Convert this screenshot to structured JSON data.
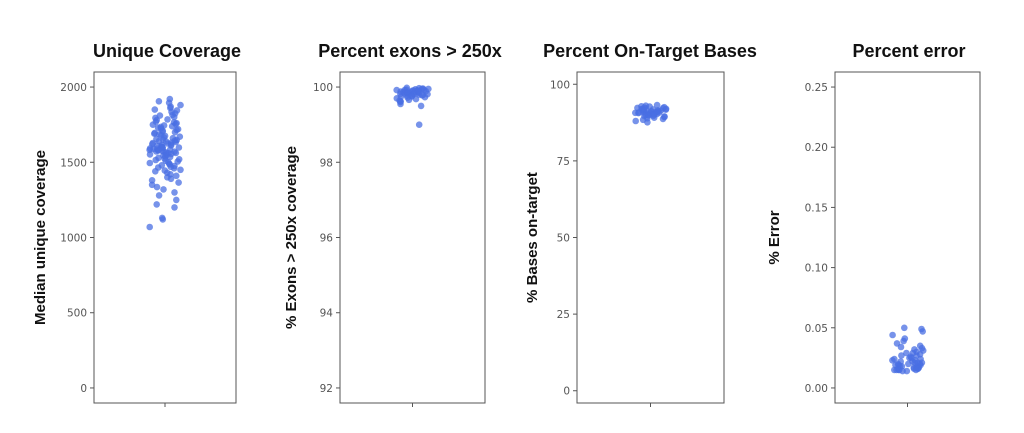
{
  "chart_data": [
    {
      "type": "scatter",
      "subtype": "jitter-strip",
      "title": "Unique Coverage",
      "ylabel": "Median unique coverage",
      "xlabel": "",
      "ylim": [
        -100,
        2100
      ],
      "yticks": [
        0,
        500,
        1000,
        1500,
        2000
      ],
      "ytick_labels": [
        "0",
        "500",
        "1000",
        "1500",
        "2000"
      ],
      "point_color": "#4A6FE3",
      "values": [
        1920,
        1905,
        1895,
        1880,
        1870,
        1860,
        1850,
        1845,
        1835,
        1825,
        1815,
        1810,
        1800,
        1795,
        1785,
        1780,
        1770,
        1765,
        1760,
        1755,
        1750,
        1745,
        1740,
        1735,
        1730,
        1725,
        1720,
        1715,
        1710,
        1705,
        1700,
        1695,
        1690,
        1685,
        1680,
        1675,
        1670,
        1665,
        1660,
        1655,
        1650,
        1648,
        1645,
        1640,
        1638,
        1635,
        1630,
        1628,
        1625,
        1620,
        1618,
        1615,
        1612,
        1610,
        1605,
        1602,
        1600,
        1598,
        1595,
        1592,
        1590,
        1588,
        1585,
        1582,
        1580,
        1578,
        1575,
        1572,
        1570,
        1568,
        1565,
        1562,
        1560,
        1555,
        1552,
        1550,
        1545,
        1540,
        1535,
        1530,
        1525,
        1520,
        1515,
        1510,
        1505,
        1500,
        1495,
        1490,
        1485,
        1480,
        1475,
        1470,
        1465,
        1460,
        1450,
        1445,
        1440,
        1430,
        1420,
        1410,
        1400,
        1390,
        1380,
        1365,
        1350,
        1335,
        1320,
        1300,
        1280,
        1250,
        1220,
        1200,
        1130,
        1120,
        1070
      ]
    },
    {
      "type": "scatter",
      "subtype": "jitter-strip",
      "title": "Percent exons > 250x",
      "ylabel": "% Exons > 250x coverage",
      "xlabel": "",
      "ylim": [
        91.6,
        100.4
      ],
      "yticks": [
        92,
        94,
        96,
        98,
        100
      ],
      "ytick_labels": [
        "92",
        "94",
        "96",
        "98",
        "100"
      ],
      "point_color": "#4A6FE3",
      "values": [
        99.98,
        99.97,
        99.96,
        99.95,
        99.95,
        99.94,
        99.93,
        99.93,
        99.92,
        99.92,
        99.91,
        99.91,
        99.9,
        99.9,
        99.9,
        99.89,
        99.89,
        99.88,
        99.88,
        99.87,
        99.87,
        99.86,
        99.86,
        99.85,
        99.85,
        99.84,
        99.84,
        99.83,
        99.83,
        99.82,
        99.82,
        99.81,
        99.8,
        99.8,
        99.79,
        99.78,
        99.77,
        99.76,
        99.75,
        99.74,
        99.73,
        99.72,
        99.7,
        99.68,
        99.66,
        99.64,
        99.62,
        99.6,
        99.55,
        99.5,
        99.0
      ]
    },
    {
      "type": "scatter",
      "subtype": "jitter-strip",
      "title": "Percent On-Target Bases",
      "ylabel": "% Bases on-target",
      "xlabel": "",
      "ylim": [
        -4,
        104
      ],
      "yticks": [
        0,
        25,
        50,
        75,
        100
      ],
      "ytick_labels": [
        "0",
        "25",
        "50",
        "75",
        "100"
      ],
      "point_color": "#4A6FE3",
      "values": [
        93.2,
        93.0,
        92.8,
        92.7,
        92.5,
        92.4,
        92.3,
        92.2,
        92.1,
        92.0,
        91.9,
        91.8,
        91.8,
        91.7,
        91.6,
        91.5,
        91.5,
        91.4,
        91.3,
        91.2,
        91.2,
        91.1,
        91.0,
        91.0,
        90.9,
        90.8,
        90.8,
        90.7,
        90.6,
        90.5,
        90.5,
        90.4,
        90.3,
        90.2,
        90.1,
        90.0,
        89.9,
        89.8,
        89.7,
        89.6,
        89.5,
        89.3,
        89.1,
        88.9,
        88.7,
        88.4,
        88.0,
        87.6
      ]
    },
    {
      "type": "scatter",
      "subtype": "jitter-strip",
      "title": "Percent error",
      "ylabel": "% Error",
      "xlabel": "",
      "ylim": [
        -0.0125,
        0.2625
      ],
      "yticks": [
        0.0,
        0.05,
        0.1,
        0.15,
        0.2,
        0.25
      ],
      "ytick_labels": [
        "0.00",
        "0.05",
        "0.10",
        "0.15",
        "0.20",
        "0.25"
      ],
      "point_color": "#4A6FE3",
      "values": [
        0.05,
        0.049,
        0.047,
        0.044,
        0.041,
        0.039,
        0.037,
        0.035,
        0.034,
        0.033,
        0.032,
        0.031,
        0.03,
        0.029,
        0.029,
        0.028,
        0.027,
        0.027,
        0.026,
        0.025,
        0.025,
        0.024,
        0.024,
        0.023,
        0.023,
        0.022,
        0.022,
        0.021,
        0.021,
        0.021,
        0.02,
        0.02,
        0.02,
        0.019,
        0.019,
        0.019,
        0.018,
        0.018,
        0.018,
        0.017,
        0.017,
        0.017,
        0.016,
        0.016,
        0.016,
        0.016,
        0.015,
        0.015,
        0.015,
        0.015,
        0.015,
        0.014,
        0.014
      ]
    }
  ]
}
